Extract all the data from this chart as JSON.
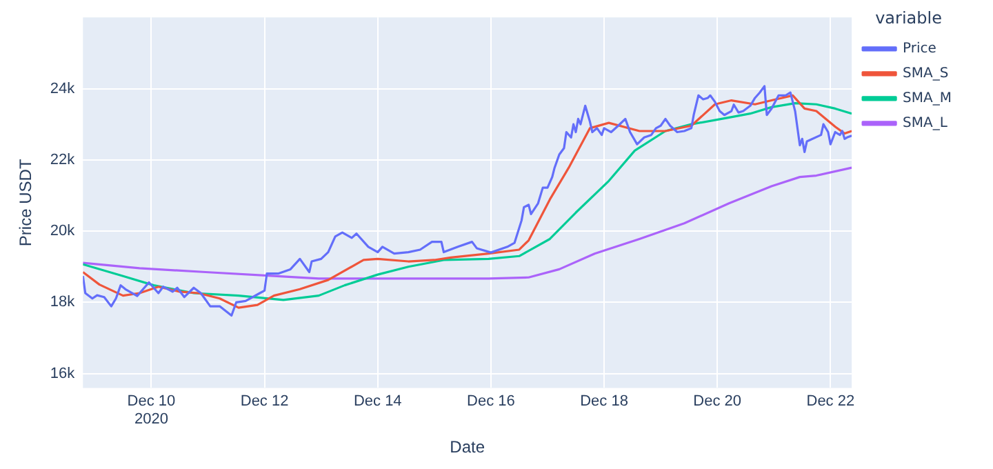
{
  "chart_data": {
    "type": "line",
    "xlabel": "Date",
    "ylabel": "Price USDT",
    "legend_title": "variable",
    "legend": "top right",
    "grid": true,
    "marker": "none",
    "line_style": "solid",
    "xlim": [
      "2020-12-08T19:00",
      "2020-12-22T09:00"
    ],
    "xticks": [
      {
        "value": "2020-12-10",
        "label": "Dec 10\n2020"
      },
      {
        "value": "2020-12-12",
        "label": "Dec 12"
      },
      {
        "value": "2020-12-14",
        "label": "Dec 14"
      },
      {
        "value": "2020-12-16",
        "label": "Dec 16"
      },
      {
        "value": "2020-12-18",
        "label": "Dec 18"
      },
      {
        "value": "2020-12-20",
        "label": "Dec 20"
      },
      {
        "value": "2020-12-22",
        "label": "Dec 22"
      }
    ],
    "ylim": [
      15600,
      26000
    ],
    "yticks": [
      {
        "value": 16000,
        "label": "16k"
      },
      {
        "value": 18000,
        "label": "18k"
      },
      {
        "value": 20000,
        "label": "20k"
      },
      {
        "value": 22000,
        "label": "22k"
      },
      {
        "value": 24000,
        "label": "24k"
      }
    ],
    "series": [
      {
        "name": "Price",
        "color": "#636efa",
        "x": [
          "2020-12-08T19:00",
          "2020-12-08T20:00",
          "2020-12-08T23:00",
          "2020-12-09T01:00",
          "2020-12-09T04:00",
          "2020-12-09T07:00",
          "2020-12-09T09:00",
          "2020-12-09T11:00",
          "2020-12-09T13:00",
          "2020-12-09T18:00",
          "2020-12-09T23:00",
          "2020-12-10T03:00",
          "2020-12-10T05:00",
          "2020-12-10T09:00",
          "2020-12-10T11:00",
          "2020-12-10T14:00",
          "2020-12-10T18:00",
          "2020-12-10T21:00",
          "2020-12-11T01:00",
          "2020-12-11T05:00",
          "2020-12-11T10:00",
          "2020-12-11T12:00",
          "2020-12-11T16:00",
          "2020-12-11T22:00",
          "2020-12-12T00:00",
          "2020-12-12T01:00",
          "2020-12-12T06:00",
          "2020-12-12T11:00",
          "2020-12-12T15:00",
          "2020-12-12T19:00",
          "2020-12-12T20:00",
          "2020-12-13T00:00",
          "2020-12-13T03:00",
          "2020-12-13T06:00",
          "2020-12-13T09:00",
          "2020-12-13T13:00",
          "2020-12-13T15:00",
          "2020-12-13T20:00",
          "2020-12-14T00:00",
          "2020-12-14T02:00",
          "2020-12-14T07:00",
          "2020-12-14T13:00",
          "2020-12-14T18:00",
          "2020-12-14T23:00",
          "2020-12-15T03:00",
          "2020-12-15T04:00",
          "2020-12-15T10:00",
          "2020-12-15T16:00",
          "2020-12-15T18:00",
          "2020-12-16T00:00",
          "2020-12-16T07:00",
          "2020-12-16T10:00",
          "2020-12-16T13:00",
          "2020-12-16T14:00",
          "2020-12-16T16:00",
          "2020-12-16T17:00",
          "2020-12-16T20:00",
          "2020-12-16T22:00",
          "2020-12-17T00:00",
          "2020-12-17T02:00",
          "2020-12-17T03:00",
          "2020-12-17T05:00",
          "2020-12-17T07:00",
          "2020-12-17T08:00",
          "2020-12-17T10:00",
          "2020-12-17T11:00",
          "2020-12-17T12:00",
          "2020-12-17T13:00",
          "2020-12-17T14:00",
          "2020-12-17T16:00",
          "2020-12-17T18:00",
          "2020-12-17T19:00",
          "2020-12-17T21:00",
          "2020-12-17T23:00",
          "2020-12-18T00:00",
          "2020-12-18T03:00",
          "2020-12-18T06:00",
          "2020-12-18T09:00",
          "2020-12-18T11:00",
          "2020-12-18T14:00",
          "2020-12-18T17:00",
          "2020-12-18T20:00",
          "2020-12-18T22:00",
          "2020-12-19T00:00",
          "2020-12-19T02:00",
          "2020-12-19T04:00",
          "2020-12-19T07:00",
          "2020-12-19T10:00",
          "2020-12-19T13:00",
          "2020-12-19T14:00",
          "2020-12-19T16:00",
          "2020-12-19T18:00",
          "2020-12-19T20:00",
          "2020-12-19T21:00",
          "2020-12-19T23:00",
          "2020-12-20T01:00",
          "2020-12-20T03:00",
          "2020-12-20T06:00",
          "2020-12-20T07:00",
          "2020-12-20T09:00",
          "2020-12-20T11:00",
          "2020-12-20T14:00",
          "2020-12-20T16:00",
          "2020-12-20T18:00",
          "2020-12-20T20:00",
          "2020-12-20T21:00",
          "2020-12-20T23:00",
          "2020-12-21T02:00",
          "2020-12-21T05:00",
          "2020-12-21T07:00",
          "2020-12-21T09:00",
          "2020-12-21T11:00",
          "2020-12-21T12:00",
          "2020-12-21T13:00",
          "2020-12-21T14:00",
          "2020-12-21T20:00",
          "2020-12-21T21:00",
          "2020-12-21T23:00",
          "2020-12-22T00:00",
          "2020-12-22T02:00",
          "2020-12-22T04:00",
          "2020-12-22T05:00",
          "2020-12-22T06:00",
          "2020-12-22T07:00",
          "2020-12-22T09:00"
        ],
        "values": [
          18740,
          18260,
          18110,
          18200,
          18150,
          17890,
          18110,
          18480,
          18370,
          18180,
          18560,
          18260,
          18440,
          18300,
          18410,
          18150,
          18410,
          18260,
          17890,
          17890,
          17630,
          18000,
          18040,
          18260,
          18330,
          18810,
          18810,
          18930,
          19220,
          18850,
          19150,
          19220,
          19410,
          19850,
          19960,
          19810,
          19930,
          19560,
          19410,
          19560,
          19370,
          19410,
          19480,
          19700,
          19700,
          19410,
          19560,
          19700,
          19520,
          19400,
          19560,
          19670,
          20300,
          20670,
          20740,
          20480,
          20780,
          21220,
          21220,
          21520,
          21780,
          22150,
          22330,
          22780,
          22630,
          23000,
          22780,
          23150,
          23000,
          23520,
          23070,
          22780,
          22890,
          22700,
          22890,
          22780,
          22960,
          23150,
          22780,
          22440,
          22630,
          22700,
          22890,
          22960,
          23150,
          22960,
          22780,
          22810,
          22890,
          23260,
          23810,
          23700,
          23740,
          23810,
          23630,
          23370,
          23260,
          23370,
          23550,
          23330,
          23370,
          23520,
          23740,
          23890,
          24070,
          23260,
          23440,
          23810,
          23810,
          23890,
          23370,
          22410,
          22590,
          22220,
          22520,
          22700,
          23000,
          22780,
          22440,
          22780,
          22700,
          22810,
          22590,
          22630,
          22680
        ]
      },
      {
        "name": "SMA_S",
        "color": "#ef553b",
        "x": [
          "2020-12-08T19:00",
          "2020-12-09T02:00",
          "2020-12-09T12:00",
          "2020-12-09T19:00",
          "2020-12-10T03:00",
          "2020-12-10T12:00",
          "2020-12-10T20:00",
          "2020-12-11T05:00",
          "2020-12-11T13:00",
          "2020-12-11T21:00",
          "2020-12-12T04:00",
          "2020-12-12T15:00",
          "2020-12-13T03:00",
          "2020-12-13T18:00",
          "2020-12-14T00:00",
          "2020-12-14T13:00",
          "2020-12-15T00:00",
          "2020-12-15T07:00",
          "2020-12-15T23:00",
          "2020-12-16T12:00",
          "2020-12-16T16:00",
          "2020-12-17T01:00",
          "2020-12-17T09:00",
          "2020-12-17T18:00",
          "2020-12-18T02:00",
          "2020-12-18T15:00",
          "2020-12-19T02:00",
          "2020-12-19T13:00",
          "2020-12-19T23:00",
          "2020-12-20T06:00",
          "2020-12-20T16:00",
          "2020-12-20T23:00",
          "2020-12-21T08:00",
          "2020-12-21T13:00",
          "2020-12-21T18:00",
          "2020-12-22T02:00",
          "2020-12-22T06:00",
          "2020-12-22T09:00"
        ],
        "values": [
          18850,
          18500,
          18190,
          18260,
          18440,
          18300,
          18260,
          18110,
          17850,
          17930,
          18190,
          18370,
          18630,
          19190,
          19220,
          19150,
          19190,
          19260,
          19370,
          19480,
          19740,
          20890,
          21780,
          22890,
          23040,
          22810,
          22810,
          22960,
          23560,
          23670,
          23560,
          23670,
          23810,
          23440,
          23370,
          22930,
          22740,
          22810
        ]
      },
      {
        "name": "SMA_M",
        "color": "#00cc96",
        "x": [
          "2020-12-08T19:00",
          "2020-12-09T12:00",
          "2020-12-10T01:00",
          "2020-12-10T18:00",
          "2020-12-11T13:00",
          "2020-12-12T08:00",
          "2020-12-12T23:00",
          "2020-12-13T10:00",
          "2020-12-14T00:00",
          "2020-12-14T13:00",
          "2020-12-15T04:00",
          "2020-12-15T23:00",
          "2020-12-16T12:00",
          "2020-12-17T01:00",
          "2020-12-17T12:00",
          "2020-12-18T02:00",
          "2020-12-18T13:00",
          "2020-12-19T02:00",
          "2020-12-19T13:00",
          "2020-12-20T05:00",
          "2020-12-20T14:00",
          "2020-12-20T23:00",
          "2020-12-21T09:00",
          "2020-12-21T18:00",
          "2020-12-22T02:00",
          "2020-12-22T09:00"
        ],
        "values": [
          19070,
          18740,
          18480,
          18260,
          18190,
          18070,
          18190,
          18480,
          18780,
          19000,
          19190,
          19220,
          19300,
          19780,
          20520,
          21410,
          22260,
          22810,
          23000,
          23190,
          23300,
          23480,
          23590,
          23560,
          23440,
          23300
        ]
      },
      {
        "name": "SMA_L",
        "color": "#ab63fa",
        "x": [
          "2020-12-08T19:00",
          "2020-12-09T19:00",
          "2020-12-10T23:00",
          "2020-12-12T04:00",
          "2020-12-12T23:00",
          "2020-12-13T18:00",
          "2020-12-15T23:00",
          "2020-12-16T16:00",
          "2020-12-17T05:00",
          "2020-12-17T20:00",
          "2020-12-18T15:00",
          "2020-12-19T10:00",
          "2020-12-20T05:00",
          "2020-12-20T23:00",
          "2020-12-21T11:00",
          "2020-12-21T18:00",
          "2020-12-22T09:00"
        ],
        "values": [
          19110,
          18960,
          18850,
          18740,
          18670,
          18670,
          18670,
          18700,
          18930,
          19370,
          19780,
          20220,
          20780,
          21260,
          21520,
          21560,
          21780
        ]
      }
    ]
  }
}
